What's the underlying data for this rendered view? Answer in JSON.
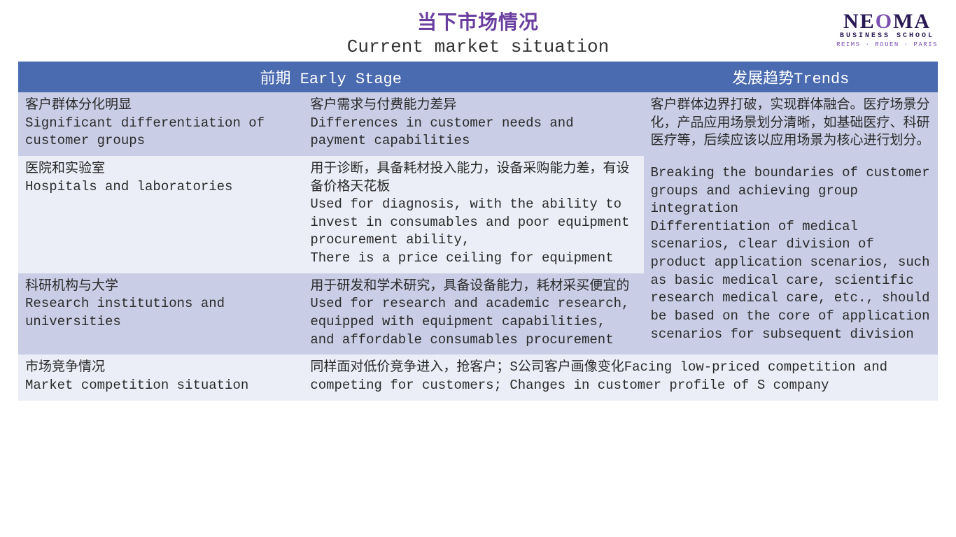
{
  "colors": {
    "title_cn": "#6a3fa0",
    "title_en": "#333333",
    "header_bg": "#4a6bb0",
    "header_text": "#ffffff",
    "row_light": "#eceef7",
    "row_dark": "#c9cee6",
    "logo_main": "#2a1a54",
    "logo_accent": "#7a4fb0",
    "logo_sub": "#2a1a54",
    "logo_cities": "#7a4fb0",
    "cell_text": "#2a2a2a"
  },
  "header": {
    "title_cn": "当下市场情况",
    "title_en": "Current market situation"
  },
  "logo": {
    "brand_pre": "NE",
    "brand_o": "O",
    "brand_post": "MA",
    "subtitle": "BUSINESS SCHOOL",
    "cities": "REIMS · ROUEN · PARIS"
  },
  "table": {
    "headers": {
      "early": "前期 Early Stage",
      "trends": "发展趋势Trends"
    },
    "rows": [
      {
        "bg": "row_dark",
        "c1": "客户群体分化明显\nSignificant differentiation of customer groups",
        "c2": "客户需求与付费能力差异\nDifferences in customer needs and payment capabilities"
      },
      {
        "bg": "row_light",
        "c1": "医院和实验室\nHospitals and laboratories",
        "c2": "用于诊断，具备耗材投入能力，设备采购能力差，有设备价格天花板\nUsed for diagnosis, with the ability to invest in consumables and poor equipment procurement ability,\nThere is a price ceiling for equipment"
      },
      {
        "bg": "row_dark",
        "c1": "科研机构与大学\nResearch institutions and universities",
        "c2": "用于研发和学术研究，具备设备能力，耗材采买便宜的\nUsed for research and academic research, equipped with equipment capabilities, and affordable consumables procurement"
      }
    ],
    "trends_cell": {
      "bg": "row_dark",
      "p1": "客户群体边界打破，实现群体融合。医疗场景分化，产品应用场景划分清晰，如基础医疗、科研医疗等，后续应该以应用场景为核心进行划分。",
      "p2": "Breaking the boundaries of customer groups and achieving group integration\nDifferentiation of medical scenarios, clear division of product application scenarios, such as basic medical care, scientific research medical care, etc., should be based on the core of application scenarios for subsequent division"
    },
    "bottom_row": {
      "bg": "row_light",
      "c1": "市场竞争情况\nMarket competition situation",
      "c2": "同样面对低价竞争进入，抢客户；S公司客户画像变化Facing low-priced competition and competing for customers; Changes in customer profile of S company"
    }
  }
}
